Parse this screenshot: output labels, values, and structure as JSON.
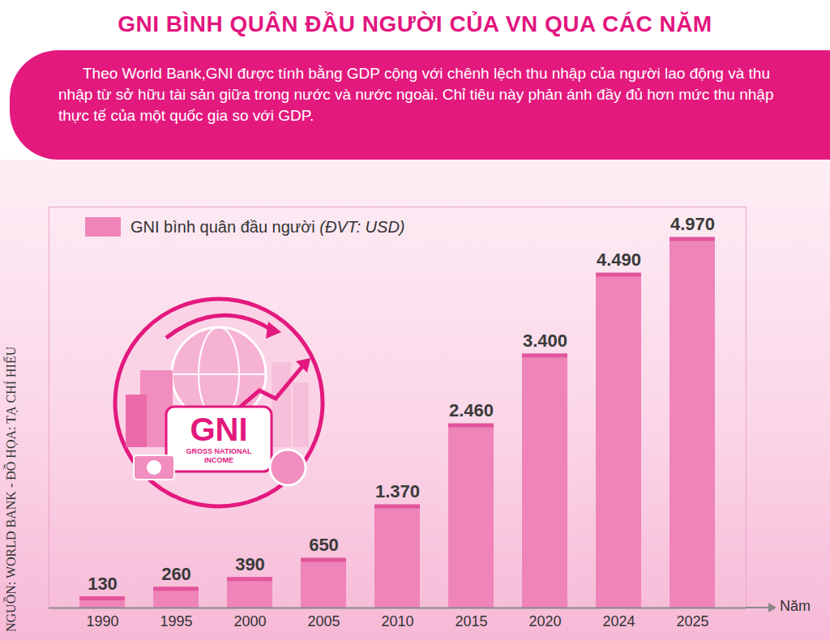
{
  "chart_data": {
    "type": "bar",
    "title": "GNI BÌNH QUÂN ĐẦU NGƯỜI CỦA VN QUA CÁC NĂM",
    "subtitle": "Theo World Bank,GNI được tính bằng GDP cộng với chênh lệch thu nhập của người lao động và thu nhập từ sở hữu tài sản giữa trong nước và nước ngoài. Chỉ tiêu này phản ánh đầy đủ hơn mức thu nhập thực tế của một quốc gia so với GDP.",
    "source": "NGUỒN: WORLD BANK - ĐỒ HỌA: TẠ CHÍ HIẾU",
    "x_label": "Năm",
    "annotations": [
      "GNI",
      "GROSS NATIONAL INCOME"
    ],
    "categories": [
      "1990",
      "1995",
      "2000",
      "2005",
      "2010",
      "2015",
      "2020",
      "2024",
      "2025"
    ],
    "series": [
      {
        "name": "GNI bình quân đầu người (ĐVT: USD)",
        "color": "#ef84b9",
        "values": [
          130,
          260,
          390,
          650,
          1370,
          2460,
          3400,
          4490,
          4970
        ],
        "value_labels": [
          "130",
          "260",
          "390",
          "650",
          "1.370",
          "2.460",
          "3.400",
          "4.490",
          "4.970"
        ]
      }
    ],
    "ylim": [
      0,
      5400
    ],
    "yticks": [],
    "tick_labels": "x",
    "data_labels": true,
    "legend": "top-left"
  }
}
